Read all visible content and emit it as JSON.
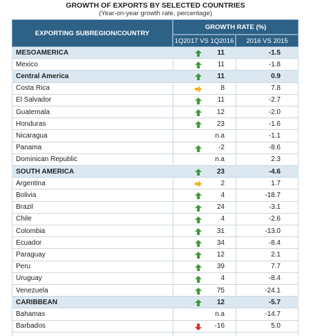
{
  "header": {
    "title": "GROWTH OF EXPORTS BY SELECTED COUNTRIES",
    "subtitle": "(Year-on-year growth rate, percentage)"
  },
  "table": {
    "columns": [
      "EXPORTING SUBREGION/COUNTRY",
      "GROWTH RATE (%)"
    ],
    "subcolumns": [
      "1Q2017 VS 1Q2016",
      "2016 VS 2015"
    ],
    "rows": [
      [
        "MESOAMERICA",
        "11",
        "-1.5"
      ],
      [
        "Mexico",
        "11",
        "-1.8"
      ],
      [
        "Central America",
        "11",
        "0.9"
      ],
      [
        "Costa Rica",
        "8",
        "7.8"
      ],
      [
        "El Salvador",
        "11",
        "-2.7"
      ],
      [
        "Guatemala",
        "12",
        "-2.0"
      ],
      [
        "Honduras",
        "23",
        "-1.6"
      ],
      [
        "Nicaragua",
        "n.a",
        "-1.1"
      ],
      [
        "Panama",
        "-2",
        "-8.6"
      ],
      [
        "Dominican Republic",
        "n.a",
        "2.3"
      ],
      [
        "SOUTH AMERICA",
        "23",
        "-4.6"
      ],
      [
        "Argentina",
        "2",
        "1.7"
      ],
      [
        "Bolivia",
        "4",
        "-18.7"
      ],
      [
        "Brazil",
        "24",
        "-3.1"
      ],
      [
        "Chile",
        "4",
        "-2.6"
      ],
      [
        "Colombia",
        "31",
        "-13.0"
      ],
      [
        "Ecuador",
        "34",
        "-8.4"
      ],
      [
        "Paraguay",
        "12",
        "2.1"
      ],
      [
        "Peru",
        "39",
        "7.7"
      ],
      [
        "Uruguay",
        "4",
        "-8.4"
      ],
      [
        "Venezuela",
        "75",
        "-24.1"
      ],
      [
        "CARIBBEAN",
        "12",
        "-5.7"
      ],
      [
        "Bahamas",
        "n.a",
        "-14.7"
      ],
      [
        "Barbados",
        "-16",
        "5.0"
      ]
    ]
  }
}
